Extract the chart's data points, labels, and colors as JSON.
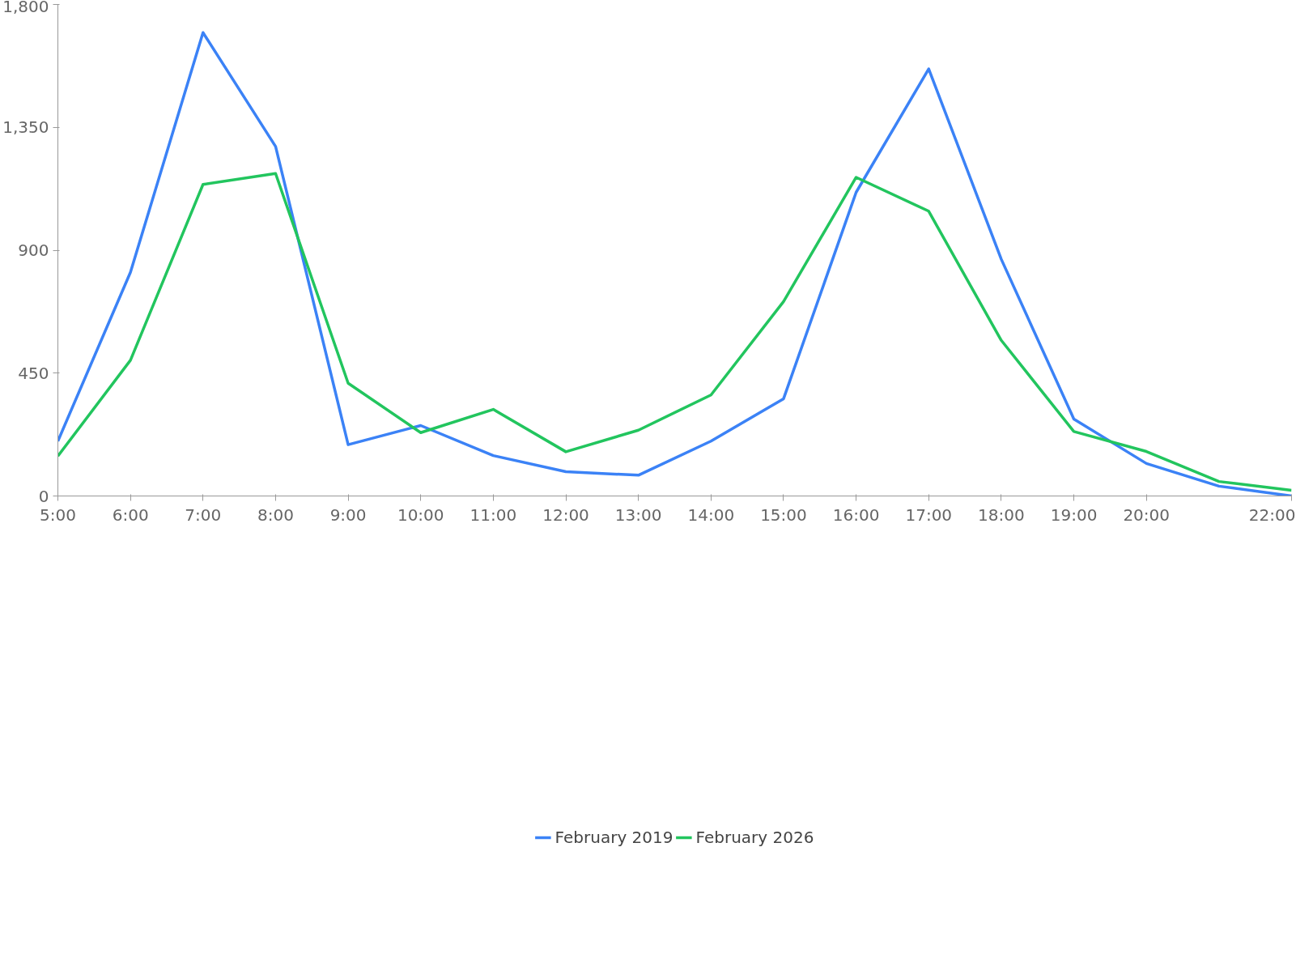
{
  "chart_data": {
    "type": "line",
    "x": [
      5,
      6,
      7,
      8,
      9,
      10,
      11,
      12,
      13,
      14,
      15,
      16,
      17,
      18,
      19,
      20,
      21,
      22
    ],
    "series": [
      {
        "name": "February 2019",
        "color": "#3b82f6",
        "values": [
          201,
          819,
          1697,
          1280,
          188,
          258,
          148,
          89,
          76,
          201,
          356,
          1112,
          1564,
          867,
          282,
          119,
          36,
          0
        ]
      },
      {
        "name": "February 2026",
        "color": "#22c55e",
        "values": [
          146,
          497,
          1141,
          1181,
          413,
          232,
          317,
          162,
          241,
          370,
          712,
          1167,
          1043,
          570,
          236,
          163,
          53,
          21
        ]
      }
    ],
    "xlim": [
      5,
      22
    ],
    "ylim": [
      0,
      1800
    ],
    "xticks": [
      {
        "value": 5,
        "label": "5:00"
      },
      {
        "value": 6,
        "label": "6:00"
      },
      {
        "value": 7,
        "label": "7:00"
      },
      {
        "value": 8,
        "label": "8:00"
      },
      {
        "value": 9,
        "label": "9:00"
      },
      {
        "value": 10,
        "label": "10:00"
      },
      {
        "value": 11,
        "label": "11:00"
      },
      {
        "value": 12,
        "label": "12:00"
      },
      {
        "value": 13,
        "label": "13:00"
      },
      {
        "value": 14,
        "label": "14:00"
      },
      {
        "value": 15,
        "label": "15:00"
      },
      {
        "value": 16,
        "label": "16:00"
      },
      {
        "value": 17,
        "label": "17:00"
      },
      {
        "value": 18,
        "label": "18:00"
      },
      {
        "value": 19,
        "label": "19:00"
      },
      {
        "value": 20,
        "label": "20:00"
      },
      {
        "value": 22,
        "label": "22:00"
      }
    ],
    "yticks": [
      0,
      {
        "value": 450,
        "label": "450"
      },
      {
        "value": 900,
        "label": "900"
      },
      {
        "value": 1350,
        "label": "1,350"
      },
      {
        "value": 1800,
        "label": "1,800"
      }
    ],
    "grid": false,
    "legend": "bottom",
    "line_style": "solid"
  }
}
